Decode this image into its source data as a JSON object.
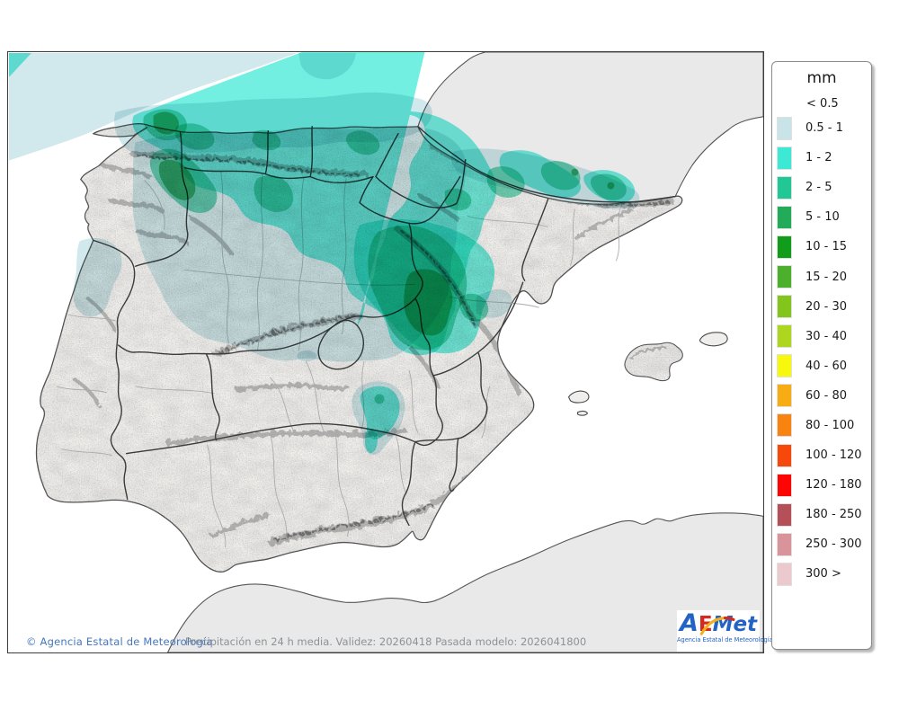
{
  "map": {
    "sea_color": "#ffffff",
    "land_color": "#f2f1ee",
    "foreign_land_color": "#e9e9e9",
    "coast_color": "#4a4a4a",
    "region_border_color": "#3b3b3b",
    "province_border_color": "#ababab",
    "footer_note": "Precipitación en 24 h media. Validez: 20260418 Pasada modelo: 2026041800",
    "copyright": "© Agencia Estatal de Meteorología"
  },
  "legend": {
    "title": "mm",
    "less_label": "< 0.5",
    "items": [
      {
        "label": "0.5 - 1",
        "color": "#c9e4e9"
      },
      {
        "label": "1 - 2",
        "color": "#3de9d5"
      },
      {
        "label": "2 - 5",
        "color": "#21c795"
      },
      {
        "label": "5 - 10",
        "color": "#22ab58"
      },
      {
        "label": "10 - 15",
        "color": "#129c1c"
      },
      {
        "label": "15 - 20",
        "color": "#4cb02c"
      },
      {
        "label": "20 - 30",
        "color": "#84c51d"
      },
      {
        "label": "30 - 40",
        "color": "#aed61f"
      },
      {
        "label": "40 - 60",
        "color": "#f8f80e"
      },
      {
        "label": "60 - 80",
        "color": "#f7ac14"
      },
      {
        "label": "80 - 100",
        "color": "#f9830f"
      },
      {
        "label": "100 - 120",
        "color": "#f6480b"
      },
      {
        "label": "120 - 180",
        "color": "#fd0505"
      },
      {
        "label": "180 - 250",
        "color": "#b65058"
      },
      {
        "label": "250 - 300",
        "color": "#d8939b"
      },
      {
        "label": "300 >",
        "color": "#ebc9cd"
      }
    ]
  },
  "logo": {
    "part_a": "A",
    "part_e": "E",
    "part_met": "Met",
    "subtitle": "Agencia Estatal de Meteorología"
  }
}
